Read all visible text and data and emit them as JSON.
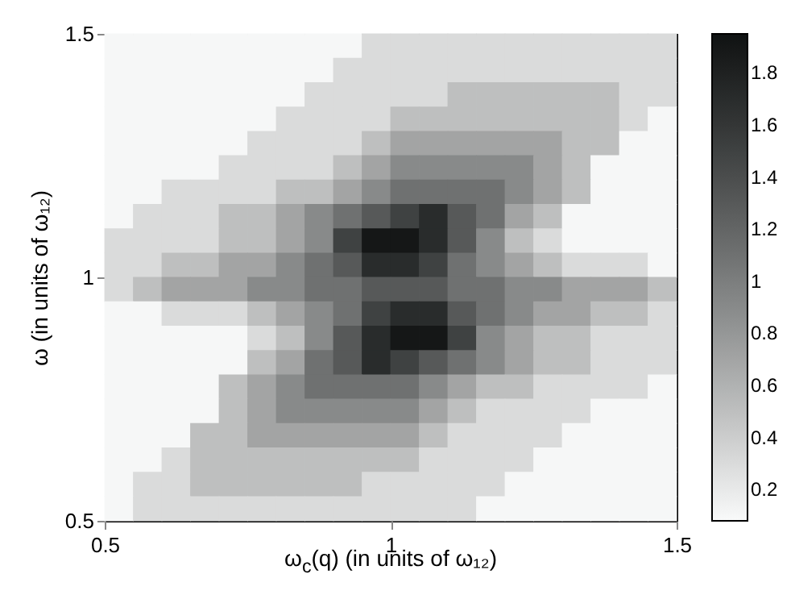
{
  "chart_data": {
    "type": "heatmap",
    "xlabel": "ω$_{c}$(q) (in units of ω₁₂)",
    "ylabel": "ω (in units of ω₁₂)",
    "x": [
      0.525,
      0.575,
      0.625,
      0.675,
      0.725,
      0.775,
      0.825,
      0.875,
      0.925,
      0.975,
      1.025,
      1.075,
      1.125,
      1.175,
      1.225,
      1.275,
      1.325,
      1.375,
      1.425,
      1.475
    ],
    "y": [
      1.475,
      1.425,
      1.375,
      1.325,
      1.275,
      1.225,
      1.175,
      1.125,
      1.075,
      1.025,
      0.975,
      0.925,
      0.875,
      0.825,
      0.775,
      0.725,
      0.675,
      0.625,
      0.575,
      0.525
    ],
    "xlim": [
      0.5,
      1.5
    ],
    "xticks": [
      0.5,
      1,
      1.5
    ],
    "ylim": [
      0.5,
      1.5
    ],
    "yticks": [
      0.5,
      1,
      1.5
    ],
    "clim": [
      0.08,
      1.95
    ],
    "cticks": [
      0.2,
      0.4,
      0.6,
      0.8,
      1,
      1.2,
      1.4,
      1.6,
      1.8
    ],
    "cells": [
      [
        0.1,
        0.1,
        0.1,
        0.1,
        0.1,
        0.1,
        0.1,
        0.1,
        0.1,
        0.3,
        0.3,
        0.3,
        0.3,
        0.3,
        0.3,
        0.3,
        0.3,
        0.3,
        0.3,
        0.3
      ],
      [
        0.1,
        0.1,
        0.1,
        0.1,
        0.1,
        0.1,
        0.1,
        0.1,
        0.3,
        0.3,
        0.3,
        0.3,
        0.3,
        0.3,
        0.3,
        0.3,
        0.3,
        0.3,
        0.3,
        0.3
      ],
      [
        0.1,
        0.1,
        0.1,
        0.1,
        0.1,
        0.1,
        0.1,
        0.3,
        0.3,
        0.3,
        0.3,
        0.3,
        0.5,
        0.5,
        0.5,
        0.5,
        0.5,
        0.5,
        0.3,
        0.3
      ],
      [
        0.1,
        0.1,
        0.1,
        0.1,
        0.1,
        0.1,
        0.3,
        0.3,
        0.3,
        0.3,
        0.5,
        0.5,
        0.5,
        0.5,
        0.5,
        0.5,
        0.5,
        0.5,
        0.3,
        0.1
      ],
      [
        0.1,
        0.1,
        0.1,
        0.1,
        0.1,
        0.3,
        0.3,
        0.3,
        0.3,
        0.5,
        0.7,
        0.7,
        0.7,
        0.7,
        0.7,
        0.7,
        0.5,
        0.5,
        0.1,
        0.1
      ],
      [
        0.1,
        0.1,
        0.1,
        0.1,
        0.3,
        0.3,
        0.3,
        0.3,
        0.5,
        0.7,
        0.9,
        0.9,
        0.9,
        0.9,
        0.9,
        0.7,
        0.5,
        0.1,
        0.1,
        0.1
      ],
      [
        0.1,
        0.1,
        0.3,
        0.3,
        0.3,
        0.3,
        0.5,
        0.5,
        0.7,
        0.9,
        1.1,
        1.1,
        1.1,
        1.1,
        0.9,
        0.7,
        0.5,
        0.1,
        0.1,
        0.1
      ],
      [
        0.1,
        0.3,
        0.3,
        0.3,
        0.5,
        0.5,
        0.7,
        0.9,
        1.1,
        1.3,
        1.5,
        1.7,
        1.3,
        1.1,
        0.7,
        0.5,
        0.1,
        0.1,
        0.1,
        0.1
      ],
      [
        0.3,
        0.3,
        0.3,
        0.3,
        0.5,
        0.5,
        0.7,
        0.9,
        1.5,
        1.9,
        1.9,
        1.7,
        1.3,
        0.9,
        0.5,
        0.3,
        0.1,
        0.1,
        0.1,
        0.1
      ],
      [
        0.3,
        0.3,
        0.5,
        0.5,
        0.7,
        0.7,
        0.9,
        1.1,
        1.3,
        1.7,
        1.7,
        1.5,
        1.1,
        0.9,
        0.7,
        0.5,
        0.3,
        0.3,
        0.3,
        0.1
      ],
      [
        0.3,
        0.5,
        0.7,
        0.7,
        0.7,
        0.9,
        0.9,
        1.1,
        1.1,
        1.3,
        1.3,
        1.3,
        1.1,
        1.1,
        0.9,
        0.9,
        0.7,
        0.7,
        0.7,
        0.5
      ],
      [
        0.1,
        0.1,
        0.3,
        0.3,
        0.3,
        0.5,
        0.7,
        0.9,
        1.1,
        1.5,
        1.7,
        1.7,
        1.3,
        1.1,
        0.9,
        0.7,
        0.7,
        0.5,
        0.5,
        0.3
      ],
      [
        0.1,
        0.1,
        0.1,
        0.1,
        0.1,
        0.3,
        0.5,
        0.9,
        1.3,
        1.7,
        1.9,
        1.9,
        1.5,
        0.9,
        0.7,
        0.5,
        0.5,
        0.3,
        0.3,
        0.3
      ],
      [
        0.1,
        0.1,
        0.1,
        0.1,
        0.1,
        0.5,
        0.7,
        1.1,
        1.3,
        1.7,
        1.5,
        1.3,
        1.1,
        0.9,
        0.7,
        0.5,
        0.5,
        0.3,
        0.3,
        0.3
      ],
      [
        0.1,
        0.1,
        0.1,
        0.1,
        0.5,
        0.7,
        0.9,
        1.1,
        1.1,
        1.1,
        1.1,
        0.9,
        0.7,
        0.5,
        0.5,
        0.3,
        0.3,
        0.3,
        0.3,
        0.1
      ],
      [
        0.1,
        0.1,
        0.1,
        0.1,
        0.5,
        0.7,
        0.9,
        0.9,
        0.9,
        0.9,
        0.9,
        0.7,
        0.5,
        0.3,
        0.3,
        0.3,
        0.3,
        0.1,
        0.1,
        0.1
      ],
      [
        0.1,
        0.1,
        0.1,
        0.5,
        0.5,
        0.7,
        0.7,
        0.7,
        0.7,
        0.7,
        0.7,
        0.5,
        0.3,
        0.3,
        0.3,
        0.3,
        0.1,
        0.1,
        0.1,
        0.1
      ],
      [
        0.1,
        0.1,
        0.3,
        0.5,
        0.5,
        0.5,
        0.5,
        0.5,
        0.5,
        0.5,
        0.5,
        0.3,
        0.3,
        0.3,
        0.3,
        0.1,
        0.1,
        0.1,
        0.1,
        0.1
      ],
      [
        0.1,
        0.3,
        0.3,
        0.5,
        0.5,
        0.5,
        0.5,
        0.5,
        0.5,
        0.3,
        0.3,
        0.3,
        0.3,
        0.3,
        0.1,
        0.1,
        0.1,
        0.1,
        0.1,
        0.1
      ],
      [
        0.1,
        0.3,
        0.3,
        0.3,
        0.3,
        0.3,
        0.3,
        0.3,
        0.3,
        0.3,
        0.3,
        0.3,
        0.3,
        0.1,
        0.1,
        0.1,
        0.1,
        0.1,
        0.1,
        0.1
      ]
    ]
  }
}
